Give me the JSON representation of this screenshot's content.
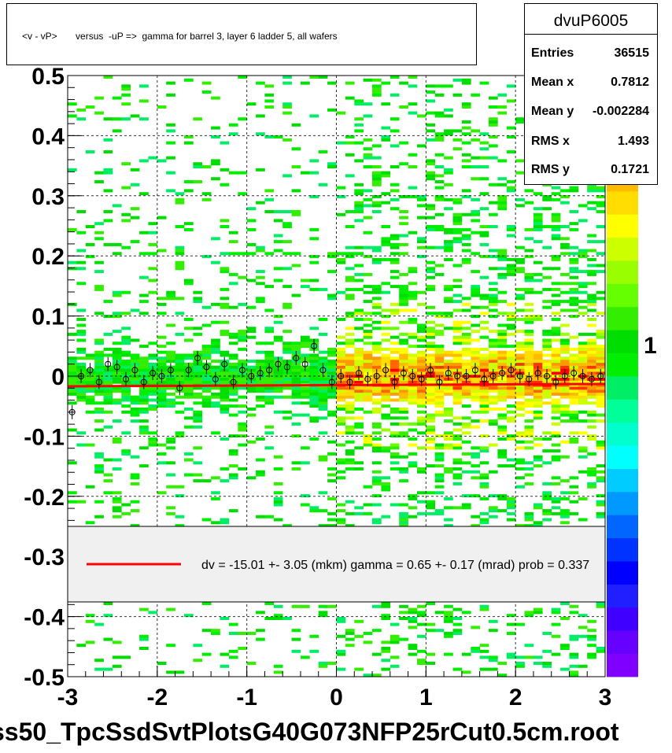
{
  "title": "<v - vP>       versus  -uP =>  gamma for barrel 3, layer 6 ladder 5, all wafers",
  "stats": {
    "name": "dvuP6005",
    "rows": [
      {
        "label": "Entries",
        "value": "36515"
      },
      {
        "label": "Mean x",
        "value": "0.7812"
      },
      {
        "label": "Mean y",
        "value": "-0.002284"
      },
      {
        "label": "RMS x",
        "value": "1.493"
      },
      {
        "label": "RMS y",
        "value": "0.1721"
      }
    ]
  },
  "legend": {
    "text": "dv =  -15.01 +-  3.05 (mkm) gamma =    0.65 +-  0.17 (mrad) prob = 0.337",
    "line_color": "#ff0000"
  },
  "footer": "ss50_TpcSsdSvtPlotsG40G073NFP25rCut0.5cm.root",
  "colors": {
    "palette": [
      "#7f00ff",
      "#6600ff",
      "#3f00ff",
      "#1f1fff",
      "#0000ff",
      "#0033ff",
      "#0066ff",
      "#0099ff",
      "#00ccff",
      "#00ffff",
      "#00ffcc",
      "#00ff99",
      "#00ee66",
      "#00ee00",
      "#00dd00",
      "#33ee00",
      "#66ff00",
      "#99ff00",
      "#ccff00",
      "#ffff00",
      "#ffdd00",
      "#ffbb00",
      "#ff9900",
      "#ff6600",
      "#ff3300",
      "#ff0000"
    ]
  },
  "chart_data": {
    "type": "heatmap",
    "title": "<v - vP>       versus  -uP =>  gamma for barrel 3, layer 6 ladder 5, all wafers",
    "xlim": [
      -3,
      3
    ],
    "ylim": [
      -0.5,
      0.5
    ],
    "x_ticks": [
      "-3",
      "-2",
      "-1",
      "0",
      "1",
      "2",
      "3"
    ],
    "y_ticks": [
      "-0.5",
      "-0.4",
      "-0.3",
      "-0.2",
      "-0.1",
      "0",
      "0.1",
      "0.2",
      "0.3",
      "0.4",
      "0.5"
    ],
    "z_ticks": [
      "1"
    ],
    "z_scale": "log",
    "grid": true,
    "fit_line": {
      "intercept": -0.015,
      "slope": 0.00065
    },
    "profile_points": {
      "x": [
        -2.95,
        -2.85,
        -2.75,
        -2.65,
        -2.55,
        -2.45,
        -2.35,
        -2.25,
        -2.15,
        -2.05,
        -1.95,
        -1.85,
        -1.75,
        -1.65,
        -1.55,
        -1.45,
        -1.35,
        -1.25,
        -1.15,
        -1.05,
        -0.95,
        -0.85,
        -0.75,
        -0.65,
        -0.55,
        -0.45,
        -0.35,
        -0.25,
        -0.15,
        -0.05,
        0.05,
        0.15,
        0.25,
        0.35,
        0.45,
        0.55,
        0.65,
        0.75,
        0.85,
        0.95,
        1.05,
        1.15,
        1.25,
        1.35,
        1.45,
        1.55,
        1.65,
        1.75,
        1.85,
        1.95,
        2.05,
        2.15,
        2.25,
        2.35,
        2.45,
        2.55,
        2.65,
        2.75,
        2.85,
        2.95
      ],
      "y": [
        -0.06,
        0.0,
        0.01,
        -0.01,
        0.02,
        0.015,
        -0.005,
        0.01,
        -0.01,
        0.005,
        0.0,
        0.01,
        -0.02,
        0.01,
        0.03,
        0.015,
        -0.005,
        0.02,
        -0.01,
        0.01,
        0.0,
        0.005,
        0.01,
        0.02,
        0.015,
        0.03,
        0.02,
        0.05,
        0.01,
        -0.01,
        0.0,
        -0.01,
        0.005,
        -0.005,
        0.0,
        0.01,
        -0.01,
        0.005,
        0.0,
        -0.005,
        0.01,
        -0.01,
        0.005,
        0.0,
        0.0,
        0.01,
        -0.005,
        0.0,
        0.005,
        0.01,
        0.0,
        -0.005,
        0.005,
        0.0,
        -0.01,
        0.0,
        0.005,
        0.0,
        -0.005,
        0.0
      ]
    },
    "density_description_values": {
      "core_band_halfwidth": 0.03,
      "left_half_density": "low",
      "right_half_density": "high"
    }
  }
}
